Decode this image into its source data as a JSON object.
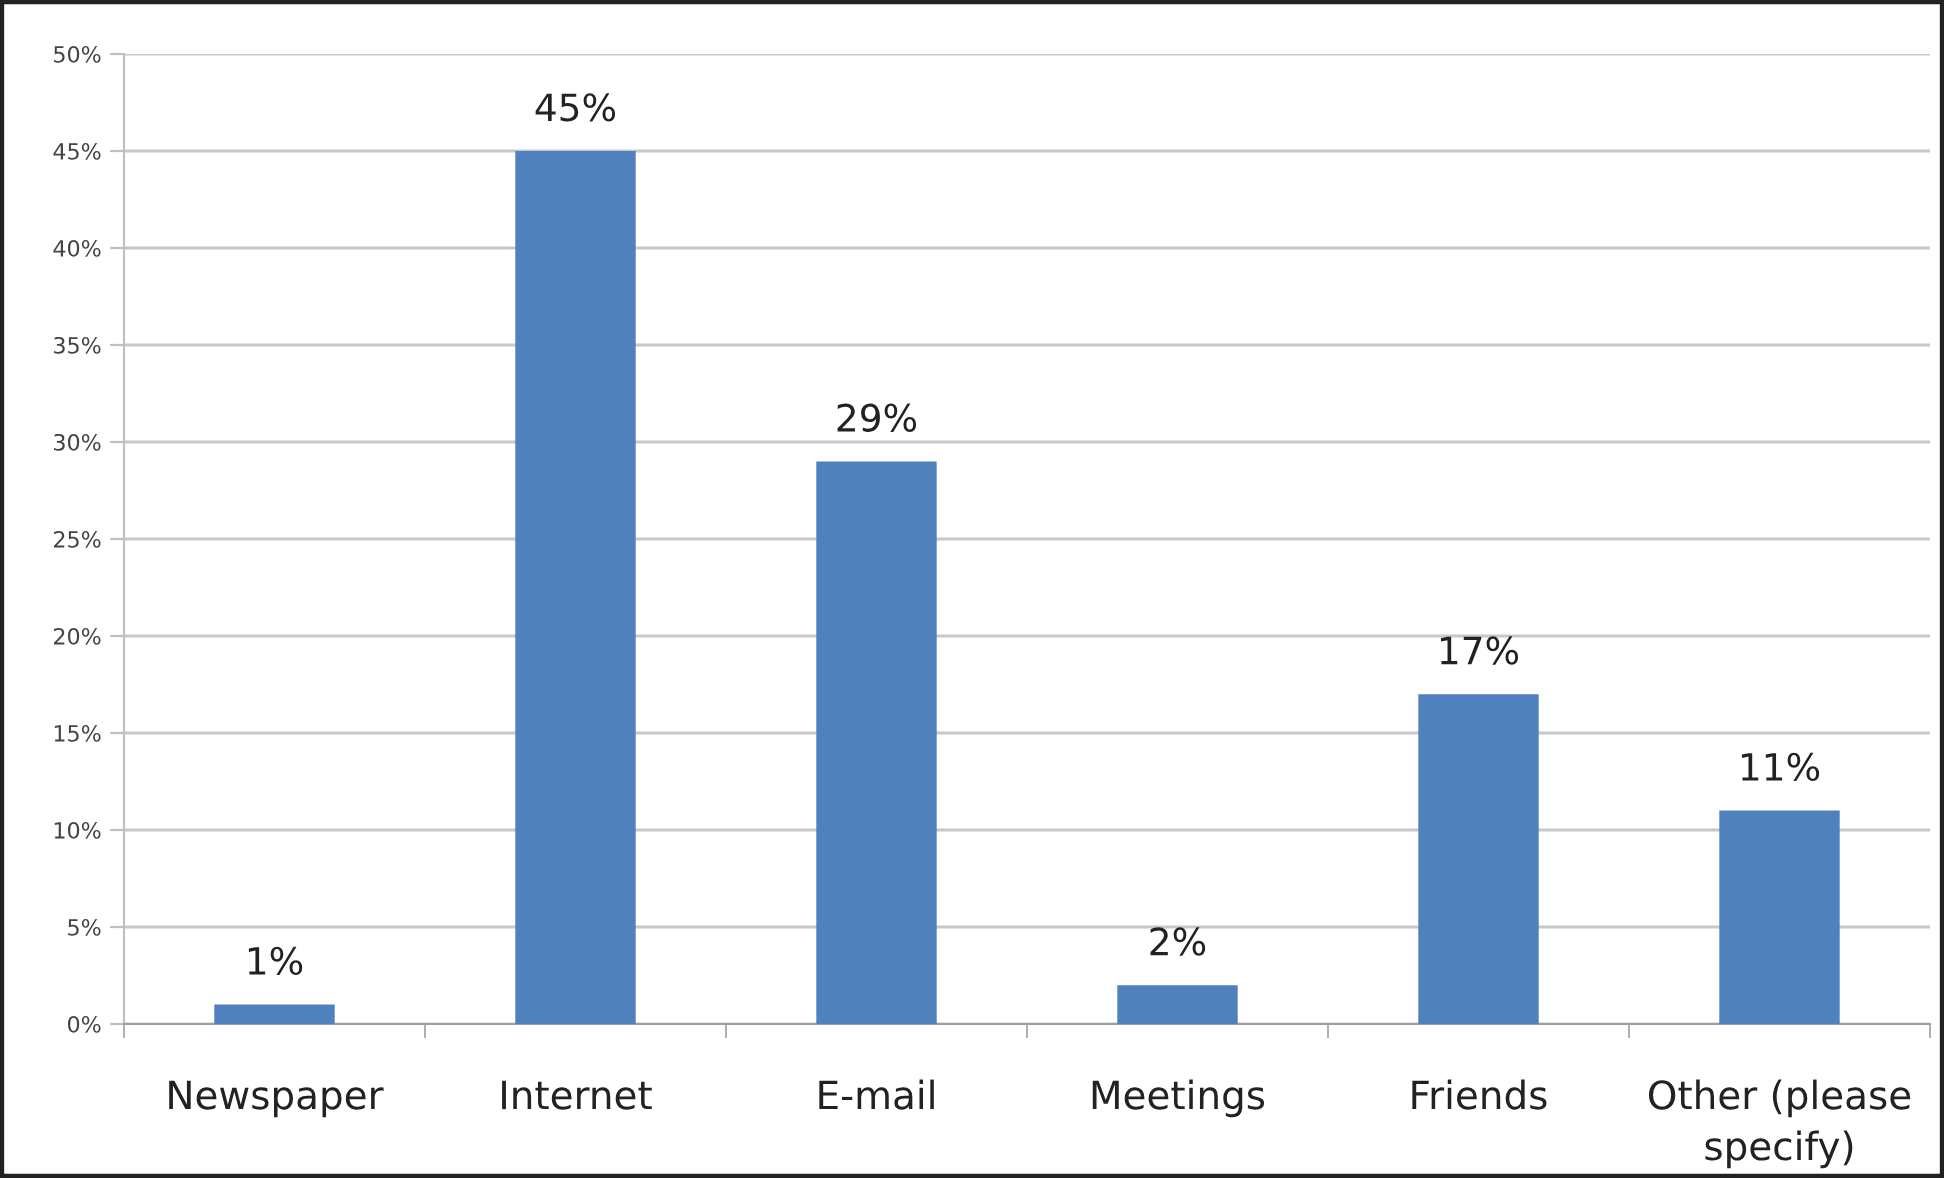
{
  "chart_data": {
    "type": "bar",
    "categories": [
      "Newspaper",
      "Internet",
      "E-mail",
      "Meetings",
      "Friends",
      "Other (please\nspecify)"
    ],
    "values": [
      1,
      45,
      29,
      2,
      17,
      11
    ],
    "value_labels": [
      "1%",
      "45%",
      "29%",
      "2%",
      "17%",
      "11%"
    ],
    "color": "#4f81bd",
    "ylim": [
      0,
      50
    ],
    "yticks": [
      {
        "value": 0,
        "label": "0%"
      },
      {
        "value": 5,
        "label": "5%"
      },
      {
        "value": 10,
        "label": "10%"
      },
      {
        "value": 15,
        "label": "15%"
      },
      {
        "value": 20,
        "label": "20%"
      },
      {
        "value": 25,
        "label": "25%"
      },
      {
        "value": 30,
        "label": "30%"
      },
      {
        "value": 35,
        "label": "35%"
      },
      {
        "value": 40,
        "label": "40%"
      },
      {
        "value": 45,
        "label": "45%"
      },
      {
        "value": 50,
        "label": "50%"
      }
    ],
    "grid": "y",
    "legend": false
  }
}
